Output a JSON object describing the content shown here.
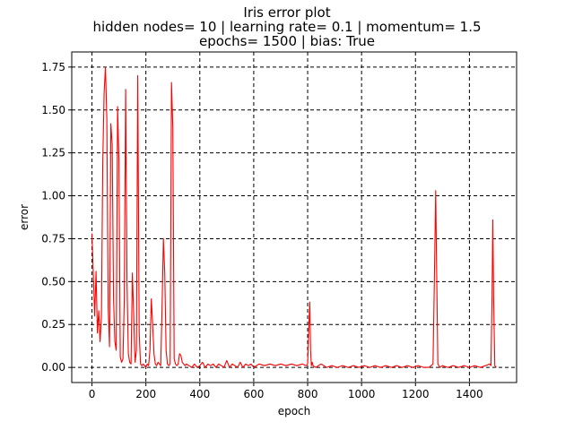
{
  "chart_data": {
    "type": "line",
    "title": "Iris error plot",
    "subtitle_lines": [
      "hidden nodes= 10 | learning rate= 0.1 | momentum= 1.5",
      "epochs= 1500 | bias: True"
    ],
    "xlabel": "epoch",
    "ylabel": "error",
    "xlim": [
      -75,
      1575
    ],
    "ylim": [
      -0.088,
      1.838
    ],
    "xticks": [
      0,
      200,
      400,
      600,
      800,
      1000,
      1200,
      1400
    ],
    "yticks": [
      0.0,
      0.25,
      0.5,
      0.75,
      1.0,
      1.25,
      1.5,
      1.75
    ],
    "xtick_labels": [
      "0",
      "200",
      "400",
      "600",
      "800",
      "1000",
      "1200",
      "1400"
    ],
    "ytick_labels": [
      "0.00",
      "0.25",
      "0.50",
      "0.75",
      "1.00",
      "1.25",
      "1.50",
      "1.75"
    ],
    "grid": true,
    "grid_style": "dashed",
    "series": [
      {
        "color": "#ff0000",
        "x": [
          0,
          5,
          10,
          15,
          20,
          25,
          30,
          35,
          40,
          45,
          50,
          55,
          60,
          65,
          70,
          75,
          80,
          85,
          90,
          95,
          100,
          105,
          110,
          115,
          120,
          125,
          130,
          135,
          140,
          145,
          150,
          155,
          160,
          165,
          170,
          175,
          180,
          185,
          190,
          195,
          200,
          205,
          210,
          215,
          220,
          225,
          230,
          235,
          240,
          245,
          250,
          255,
          260,
          265,
          270,
          275,
          280,
          285,
          290,
          295,
          300,
          305,
          310,
          315,
          320,
          325,
          330,
          335,
          340,
          345,
          350,
          360,
          370,
          380,
          390,
          400,
          410,
          420,
          430,
          440,
          450,
          460,
          470,
          480,
          490,
          500,
          510,
          520,
          530,
          540,
          550,
          560,
          570,
          580,
          590,
          600,
          620,
          640,
          660,
          680,
          700,
          720,
          740,
          760,
          780,
          795,
          800,
          805,
          808,
          811,
          814,
          817,
          820,
          830,
          850,
          870,
          890,
          910,
          930,
          950,
          970,
          990,
          1010,
          1030,
          1050,
          1070,
          1090,
          1110,
          1130,
          1150,
          1170,
          1190,
          1210,
          1230,
          1250,
          1265,
          1270,
          1275,
          1279,
          1283,
          1287,
          1290,
          1300,
          1320,
          1340,
          1360,
          1380,
          1400,
          1420,
          1440,
          1460,
          1475,
          1480,
          1484,
          1487,
          1490,
          1494,
          1500
        ],
        "y": [
          0.78,
          0.55,
          0.3,
          0.56,
          0.2,
          0.33,
          0.15,
          0.3,
          1.2,
          1.6,
          1.75,
          1.45,
          0.35,
          0.12,
          1.42,
          1.3,
          0.4,
          0.15,
          0.1,
          1.52,
          1.2,
          0.06,
          0.03,
          0.05,
          0.4,
          1.62,
          0.5,
          0.08,
          0.03,
          0.02,
          0.55,
          0.3,
          0.03,
          0.1,
          1.7,
          0.2,
          0.02,
          0.01,
          0.02,
          0.01,
          0.0,
          0.02,
          0.01,
          0.1,
          0.4,
          0.25,
          0.08,
          0.02,
          0.01,
          0.03,
          0.02,
          0.01,
          0.35,
          0.75,
          0.55,
          0.1,
          0.02,
          0.01,
          0.02,
          1.66,
          1.4,
          0.05,
          0.02,
          0.01,
          0.02,
          0.08,
          0.07,
          0.03,
          0.02,
          0.01,
          0.02,
          0.01,
          0.0,
          0.02,
          0.0,
          0.01,
          0.03,
          0.0,
          0.02,
          0.01,
          0.02,
          0.0,
          0.02,
          0.01,
          0.0,
          0.04,
          0.0,
          0.02,
          0.01,
          0.0,
          0.03,
          0.0,
          0.02,
          0.01,
          0.02,
          0.0,
          0.02,
          0.01,
          0.02,
          0.01,
          0.02,
          0.01,
          0.02,
          0.01,
          0.02,
          0.01,
          0.02,
          0.25,
          0.38,
          0.1,
          0.01,
          0.03,
          0.01,
          0.0,
          0.02,
          0.0,
          0.01,
          0.0,
          0.01,
          0.0,
          0.01,
          0.0,
          0.01,
          0.0,
          0.01,
          0.0,
          0.01,
          0.0,
          0.01,
          0.0,
          0.01,
          0.0,
          0.01,
          0.0,
          0.0,
          0.02,
          0.5,
          1.03,
          0.5,
          0.02,
          0.01,
          0.0,
          0.01,
          0.0,
          0.01,
          0.0,
          0.01,
          0.0,
          0.01,
          0.0,
          0.01,
          0.02,
          0.01,
          0.4,
          0.86,
          0.4,
          0.01,
          0.0
        ]
      }
    ]
  }
}
